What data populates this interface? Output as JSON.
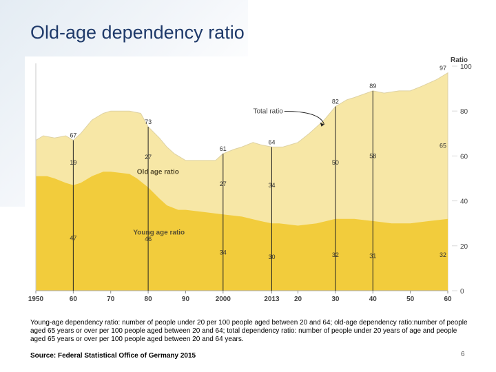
{
  "slide": {
    "title": "Old-age dependency ratio",
    "caption": "Young-age dependency ratio: number of people under 20 per 100 people aged between 20 and 64; old-age dependency ratio:number of people aged 65 years or over per 100 people aged between 20 and 64; total dependency ratio: number of people under 20 years of age and people aged 65 years or over per 100 people aged between 20 and 64 years.",
    "source": "Source: Federal Statistical Office of Germany 2015",
    "page_number": "6"
  },
  "chart_data": {
    "type": "area",
    "title": "",
    "xlabel": "",
    "ylabel": "Ratio",
    "xlim": [
      1950,
      2060
    ],
    "ylim": [
      0,
      100
    ],
    "x_ticks": [
      "1950",
      "60",
      "70",
      "80",
      "90",
      "2000",
      "2013",
      "20",
      "30",
      "40",
      "50",
      "60"
    ],
    "x_tick_values": [
      1950,
      1960,
      1970,
      1980,
      1990,
      2000,
      2013,
      2020,
      2030,
      2040,
      2050,
      2060
    ],
    "y_ticks": [
      "0",
      "20",
      "40",
      "60",
      "80",
      "100"
    ],
    "y_tick_values": [
      0,
      20,
      40,
      60,
      80,
      100
    ],
    "colors": {
      "total_area": "#f7e7a6",
      "young_area": "#f2cc3c",
      "outline": "#ded2a4",
      "line": "#222222",
      "grid": "#d8d8d8"
    },
    "series": [
      {
        "name": "Young age ratio",
        "x": [
          1950,
          1953,
          1955,
          1958,
          1960,
          1962,
          1965,
          1968,
          1970,
          1975,
          1977,
          1980,
          1983,
          1985,
          1988,
          1990,
          1995,
          2000,
          2005,
          2010,
          2013,
          2015,
          2020,
          2025,
          2030,
          2035,
          2040,
          2045,
          2050,
          2055,
          2060
        ],
        "values": [
          51,
          51,
          50,
          48,
          47,
          48,
          51,
          53,
          53,
          52,
          50,
          46,
          41,
          38,
          36,
          36,
          35,
          34,
          33,
          31,
          30,
          30,
          29,
          30,
          32,
          32,
          31,
          30,
          30,
          31,
          32
        ]
      },
      {
        "name": "Old age ratio",
        "x": [
          1960,
          1980,
          2000,
          2013,
          2030,
          2040,
          2060
        ],
        "values": [
          19,
          27,
          27,
          34,
          50,
          58,
          65
        ]
      },
      {
        "name": "Total ratio",
        "x": [
          1950,
          1952,
          1955,
          1958,
          1960,
          1962,
          1965,
          1968,
          1970,
          1972,
          1975,
          1978,
          1980,
          1983,
          1985,
          1987,
          1990,
          1993,
          1995,
          1998,
          2000,
          2003,
          2005,
          2008,
          2010,
          2013,
          2016,
          2020,
          2023,
          2027,
          2030,
          2033,
          2035,
          2040,
          2043,
          2047,
          2050,
          2053,
          2057,
          2059,
          2060
        ],
        "values": [
          67,
          69,
          68,
          69,
          67,
          70,
          76,
          79,
          80,
          80,
          80,
          79,
          73,
          68,
          64,
          61,
          58,
          58,
          58,
          58,
          61,
          63,
          64,
          66,
          65,
          64,
          64,
          66,
          70,
          76,
          82,
          85,
          86,
          89,
          88,
          89,
          89,
          91,
          94,
          96,
          97
        ]
      }
    ],
    "markers": [
      {
        "x": 1960,
        "total": "67",
        "old": "19",
        "young": "47"
      },
      {
        "x": 1980,
        "total": "73",
        "old": "27",
        "young": "46"
      },
      {
        "x": 2000,
        "total": "61",
        "old": "27",
        "young": "34"
      },
      {
        "x": 2013,
        "total": "64",
        "old": "34",
        "young": "30"
      },
      {
        "x": 2030,
        "total": "82",
        "old": "50",
        "young": "32"
      },
      {
        "x": 2040,
        "total": "89",
        "old": "58",
        "young": "31"
      },
      {
        "x": 2060,
        "total": "97",
        "old": "65",
        "young": "32"
      }
    ],
    "area_labels": [
      {
        "text": "Old age ratio",
        "x": 1977,
        "y": 52
      },
      {
        "text": "Young age ratio",
        "x": 1976,
        "y": 25
      }
    ],
    "annotation": {
      "text": "Total ratio",
      "x": 2016,
      "y": 79,
      "arrow_to_x": 2027,
      "arrow_to_y": 74
    }
  }
}
